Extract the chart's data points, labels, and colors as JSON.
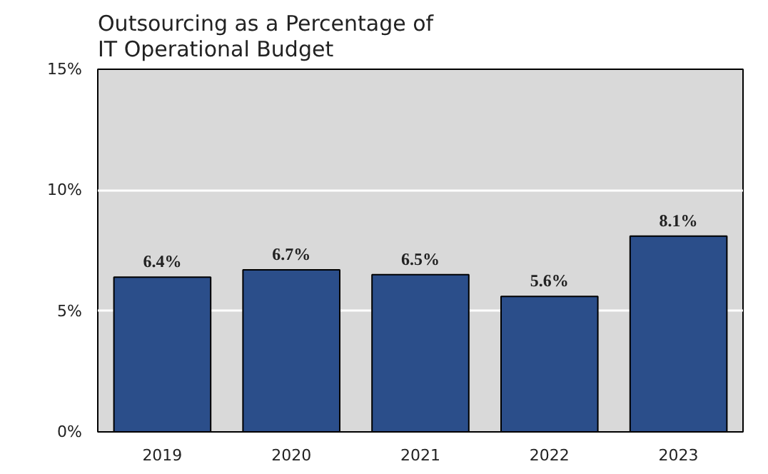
{
  "chart_data": {
    "type": "bar",
    "title": "Outsourcing as a Percentage of\nIT Operational Budget",
    "categories": [
      "2019",
      "2020",
      "2021",
      "2022",
      "2023"
    ],
    "values": [
      6.4,
      6.7,
      6.5,
      5.6,
      8.1
    ],
    "value_labels": [
      "6.4%",
      "6.7%",
      "6.5%",
      "5.6%",
      "8.1%"
    ],
    "color": "#2b4e8a",
    "ylim": [
      0,
      15
    ],
    "yticks": [
      {
        "value": 0,
        "label": "0%"
      },
      {
        "value": 5,
        "label": "5%"
      },
      {
        "value": 10,
        "label": "10%"
      },
      {
        "value": 15,
        "label": "15%"
      }
    ],
    "grid": "y"
  }
}
